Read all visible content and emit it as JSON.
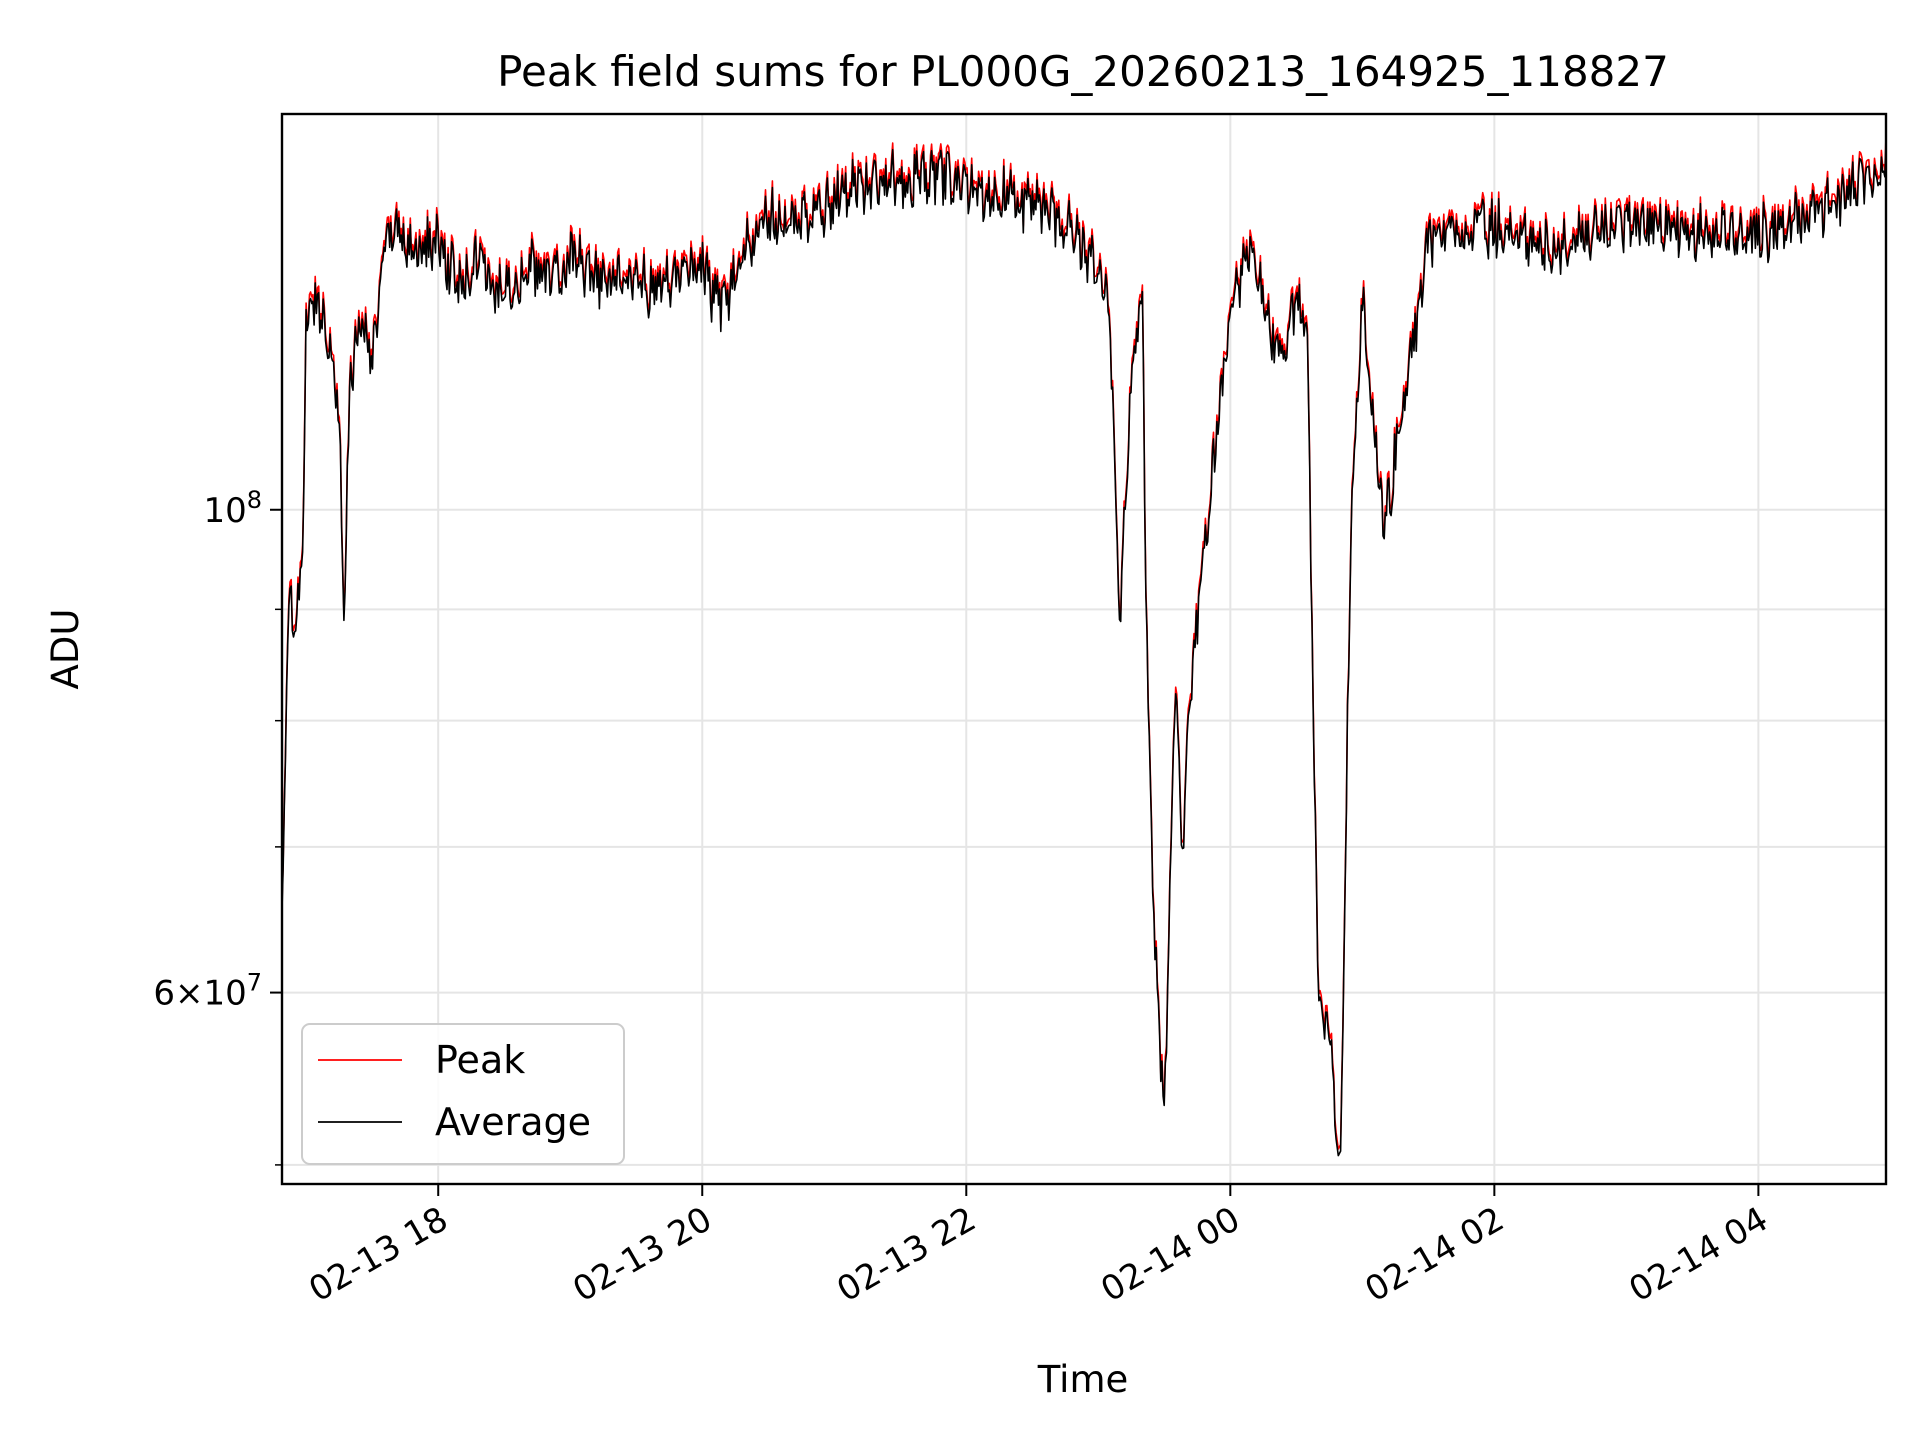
{
  "chart_data": {
    "type": "line",
    "title": "Peak field sums for PL000G_20260213_164925_118827",
    "xlabel": "Time",
    "ylabel": "ADU",
    "y_scale": "log",
    "ylim": [
      49000000,
      152000000
    ],
    "xlim": [
      "02-13 16:49",
      "02-14 04:58"
    ],
    "x_ticks": [
      "02-13 18",
      "02-13 20",
      "02-13 22",
      "02-14 00",
      "02-14 02",
      "02-14 04"
    ],
    "x_tick_hours": [
      18,
      20,
      22,
      24,
      26,
      28
    ],
    "y_major_ticks": [
      {
        "value": 100000000,
        "base": "10",
        "exp": "8"
      },
      {
        "value": 60000000,
        "coef": "6",
        "base": "10",
        "exp": "7"
      }
    ],
    "y_minor_ticks": [
      50000000,
      70000000,
      80000000,
      90000000
    ],
    "grid": true,
    "legend": {
      "placement": "lower-left",
      "entries": [
        "Peak",
        "Average"
      ]
    },
    "series": [
      {
        "name": "Peak",
        "color": "#ff0000",
        "y_offset_ratio": 1.007
      },
      {
        "name": "Average",
        "color": "#000000",
        "y_offset_ratio": 1.0
      }
    ],
    "x": [
      "02-13 16:49",
      "02-13 16:52",
      "02-13 16:55",
      "02-13 16:58",
      "02-13 17:00",
      "02-13 17:05",
      "02-13 17:10",
      "02-13 17:15",
      "02-13 17:17",
      "02-13 17:20",
      "02-13 17:25",
      "02-13 17:30",
      "02-13 17:35",
      "02-13 17:40",
      "02-13 17:50",
      "02-13 18:00",
      "02-13 18:10",
      "02-13 18:20",
      "02-13 18:25",
      "02-13 18:40",
      "02-13 18:55",
      "02-13 19:00",
      "02-13 19:10",
      "02-13 19:25",
      "02-13 19:40",
      "02-13 20:00",
      "02-13 20:05",
      "02-13 20:10",
      "02-13 20:20",
      "02-13 20:30",
      "02-13 20:50",
      "02-13 21:10",
      "02-13 21:30",
      "02-13 21:50",
      "02-13 22:10",
      "02-13 22:30",
      "02-13 22:50",
      "02-13 23:00",
      "02-13 23:05",
      "02-13 23:10",
      "02-13 23:15",
      "02-13 23:20",
      "02-13 23:22",
      "02-13 23:25",
      "02-13 23:30",
      "02-13 23:35",
      "02-13 23:38",
      "02-13 23:42",
      "02-13 23:50",
      "02-13 23:55",
      "02-14 00:00",
      "02-14 00:10",
      "02-14 00:15",
      "02-14 00:20",
      "02-14 00:25",
      "02-14 00:30",
      "02-14 00:35",
      "02-14 00:40",
      "02-14 00:45",
      "02-14 00:50",
      "02-14 00:55",
      "02-14 01:00",
      "02-14 01:10",
      "02-14 01:30",
      "02-14 02:00",
      "02-14 02:30",
      "02-14 03:00",
      "02-14 03:30",
      "02-14 04:00",
      "02-14 04:30",
      "02-14 04:58"
    ],
    "values": [
      65000000,
      90000000,
      89000000,
      92000000,
      122000000,
      125000000,
      121000000,
      111000000,
      88000000,
      115000000,
      123000000,
      117000000,
      130000000,
      135000000,
      131000000,
      133000000,
      126000000,
      131000000,
      125000000,
      129000000,
      128000000,
      131000000,
      127000000,
      128000000,
      126000000,
      130000000,
      125000000,
      124000000,
      132000000,
      136000000,
      137000000,
      141000000,
      142000000,
      142000000,
      140000000,
      138000000,
      134000000,
      129000000,
      124000000,
      89000000,
      115000000,
      127000000,
      87000000,
      65000000,
      52500000,
      84000000,
      69000000,
      82000000,
      100000000,
      111000000,
      123000000,
      132000000,
      125000000,
      119000000,
      117000000,
      125000000,
      119000000,
      59000000,
      57500000,
      49500000,
      101000000,
      124000000,
      98000000,
      133000000,
      135000000,
      132000000,
      136000000,
      134000000,
      134000000,
      137000000,
      145000000
    ]
  }
}
